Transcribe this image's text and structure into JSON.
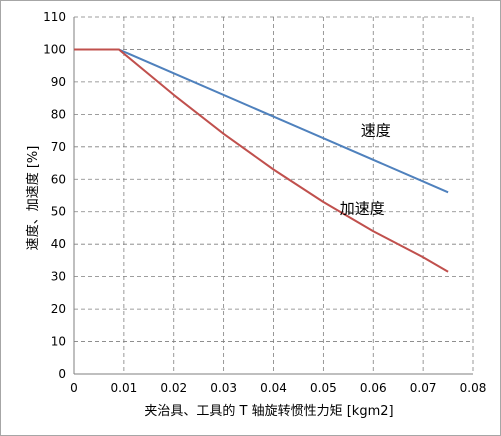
{
  "chart_data": {
    "type": "line",
    "title": "",
    "xlabel": "夹治具、工具的 T 轴旋转惯性力矩 [kgm2]",
    "ylabel": "速度、加速度 [%]",
    "xlim": [
      0,
      0.08
    ],
    "ylim": [
      0,
      110
    ],
    "xticks": [
      0,
      0.01,
      0.02,
      0.03,
      0.04,
      0.05,
      0.06,
      0.07,
      0.08
    ],
    "xtick_labels": [
      "0",
      "0.01",
      "0.02",
      "0.03",
      "0.04",
      "0.05",
      "0.06",
      "0.07",
      "0.08"
    ],
    "yticks": [
      0,
      10,
      20,
      30,
      40,
      50,
      60,
      70,
      80,
      90,
      100,
      110
    ],
    "ytick_labels": [
      "0",
      "10",
      "20",
      "30",
      "40",
      "50",
      "60",
      "70",
      "80",
      "90",
      "100",
      "110"
    ],
    "grid": true,
    "legend": "none",
    "series": [
      {
        "name": "速度",
        "color": "#4f81bd",
        "x": [
          0,
          0.009,
          0.075
        ],
        "y": [
          100,
          100,
          56
        ],
        "label_at": [
          0.0605,
          73.5
        ]
      },
      {
        "name": "加速度",
        "color": "#c0504d",
        "x": [
          0,
          0.009,
          0.02,
          0.03,
          0.04,
          0.05,
          0.06,
          0.07,
          0.075
        ],
        "y": [
          100,
          100,
          86,
          74,
          63,
          53,
          44,
          36,
          31.5
        ],
        "label_at": [
          0.0578,
          49.5
        ]
      }
    ]
  }
}
